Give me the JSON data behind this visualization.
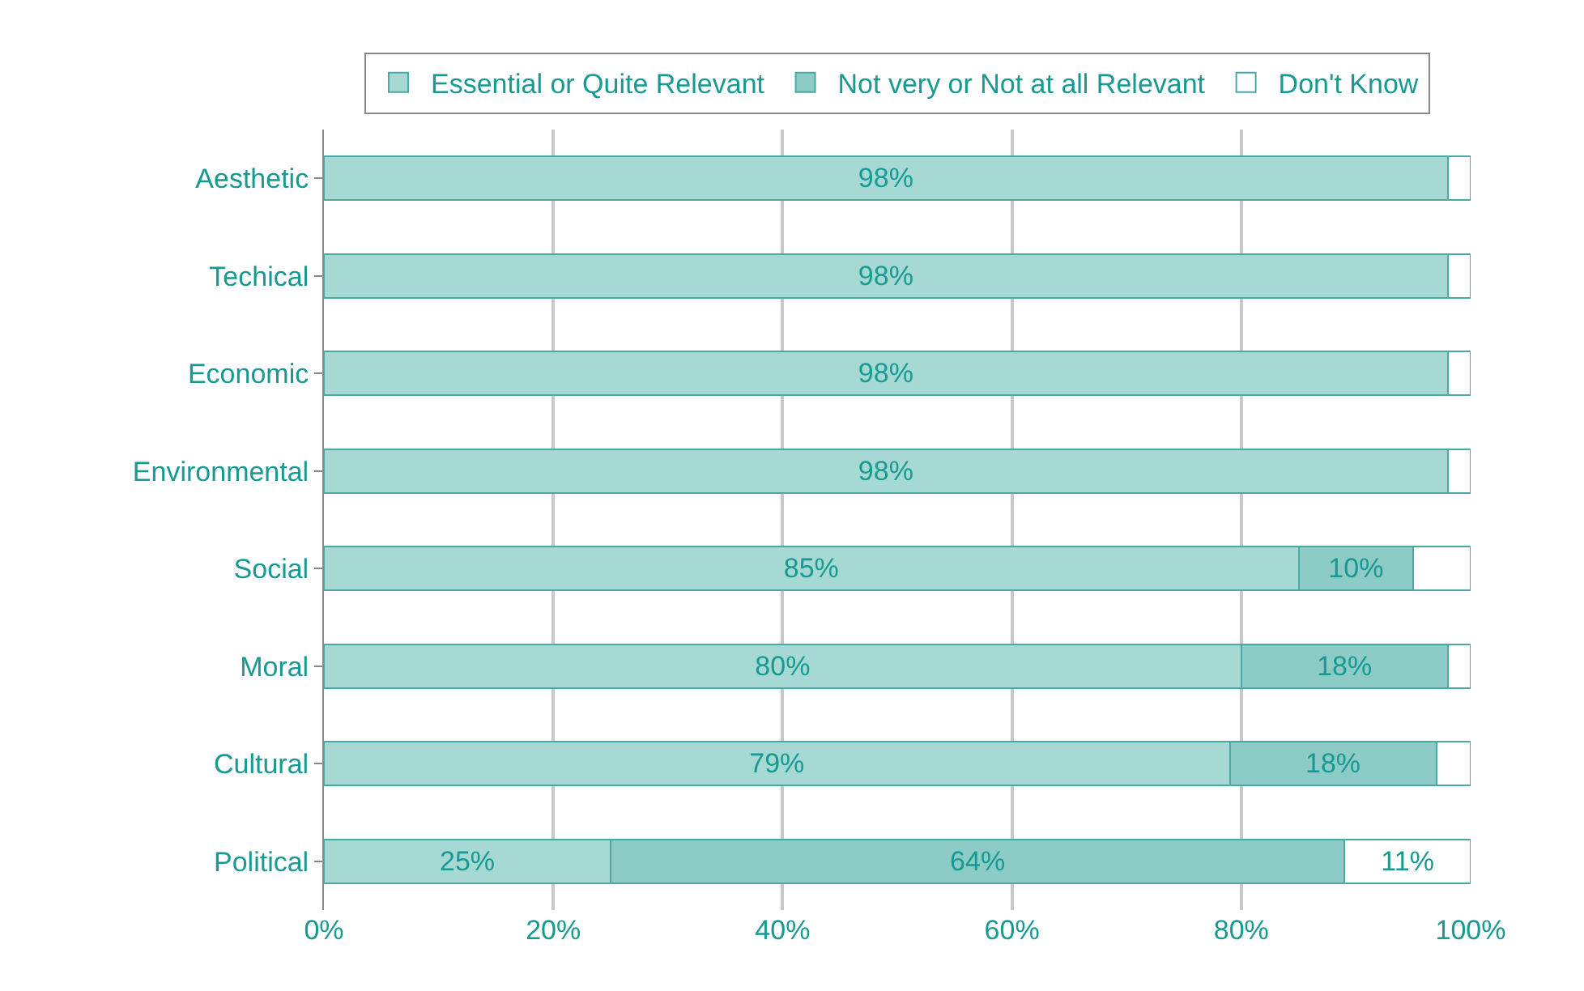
{
  "chart_data": {
    "type": "bar",
    "orientation": "horizontal",
    "stacked": true,
    "categories": [
      "Aesthetic",
      "Techical",
      "Economic",
      "Environmental",
      "Social",
      "Moral",
      "Cultural",
      "Political"
    ],
    "series": [
      {
        "name": "Essential or Quite Relevant",
        "color": "#a6d8d4",
        "values": [
          98,
          98,
          98,
          98,
          85,
          80,
          79,
          25
        ],
        "value_labels": [
          "98%",
          "98%",
          "98%",
          "98%",
          "85%",
          "80%",
          "79%",
          "25%"
        ]
      },
      {
        "name": "Not very or Not at all Relevant",
        "color": "#8ccbc6",
        "values": [
          0,
          0,
          0,
          0,
          10,
          18,
          18,
          64
        ],
        "value_labels": [
          null,
          null,
          null,
          null,
          "10%",
          "18%",
          "18%",
          "64%"
        ]
      },
      {
        "name": "Don't Know",
        "color": "#ffffff",
        "values": [
          2,
          2,
          2,
          2,
          5,
          2,
          3,
          11
        ],
        "value_labels": [
          null,
          null,
          null,
          null,
          null,
          null,
          null,
          "11%"
        ]
      }
    ],
    "xlim": [
      0,
      100
    ],
    "xticks": [
      {
        "value": 0,
        "label": "0%"
      },
      {
        "value": 20,
        "label": "20%"
      },
      {
        "value": 40,
        "label": "40%"
      },
      {
        "value": 60,
        "label": "60%"
      },
      {
        "value": 80,
        "label": "80%"
      },
      {
        "value": 100,
        "label": "100%"
      }
    ],
    "grid": "x",
    "legend": "top"
  }
}
